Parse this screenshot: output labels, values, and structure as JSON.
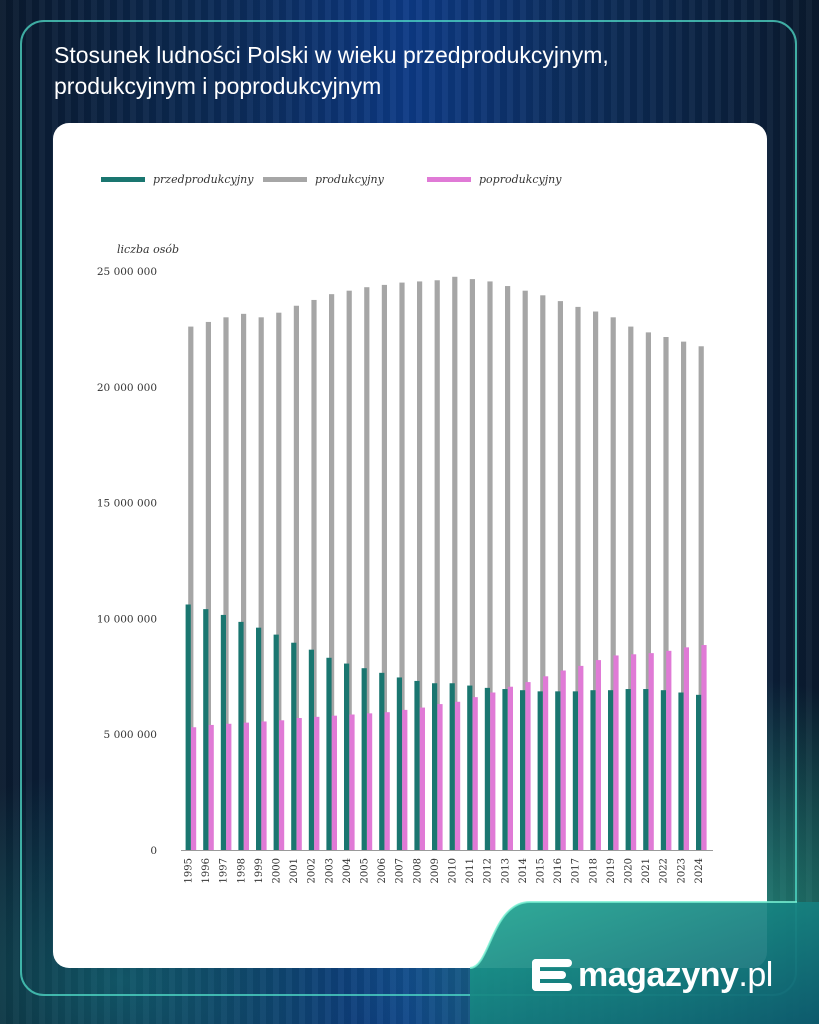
{
  "header": {
    "title": "Stosunek ludności Polski w wieku przedprodukcyjnym, produkcyjnym i poprodukcyjnym"
  },
  "brand": {
    "name": "magazyny",
    "suffix": ".pl"
  },
  "colors": {
    "przedprodukcyjny": "#1a7670",
    "produkcyjny": "#a6a6a6",
    "poprodukcyjny": "#e07ad6",
    "accent": "#3de0b8"
  },
  "chart_data": {
    "type": "bar",
    "title": "",
    "ylabel": "liczba osób",
    "xlabel": "",
    "ylim": [
      0,
      25000000
    ],
    "yticks": [
      0,
      5000000,
      10000000,
      15000000,
      20000000,
      25000000
    ],
    "ytick_labels": [
      "0",
      "5 000 000",
      "10 000 000",
      "15 000 000",
      "20 000 000",
      "25 000 000"
    ],
    "legend_position": "top-left",
    "grid": false,
    "categories": [
      "1995",
      "1996",
      "1997",
      "1998",
      "1999",
      "2000",
      "2001",
      "2002",
      "2003",
      "2004",
      "2005",
      "2006",
      "2007",
      "2008",
      "2009",
      "2010",
      "2011",
      "2012",
      "2013",
      "2014",
      "2015",
      "2016",
      "2017",
      "2018",
      "2019",
      "2020",
      "2021",
      "2022",
      "2023",
      "2024"
    ],
    "series": [
      {
        "name": "przedprodukcyjny",
        "values": [
          10600000,
          10400000,
          10150000,
          9850000,
          9600000,
          9300000,
          8950000,
          8650000,
          8300000,
          8050000,
          7850000,
          7650000,
          7450000,
          7300000,
          7200000,
          7200000,
          7100000,
          7000000,
          6950000,
          6900000,
          6850000,
          6850000,
          6850000,
          6900000,
          6900000,
          6950000,
          6950000,
          6900000,
          6800000,
          6700000
        ]
      },
      {
        "name": "produkcyjny",
        "values": [
          22600000,
          22800000,
          23000000,
          23150000,
          23000000,
          23200000,
          23500000,
          23750000,
          24000000,
          24150000,
          24300000,
          24400000,
          24500000,
          24550000,
          24600000,
          24750000,
          24650000,
          24550000,
          24350000,
          24150000,
          23950000,
          23700000,
          23450000,
          23250000,
          23000000,
          22600000,
          22350000,
          22150000,
          21950000,
          21750000
        ]
      },
      {
        "name": "poprodukcyjny",
        "values": [
          5300000,
          5400000,
          5450000,
          5500000,
          5550000,
          5600000,
          5700000,
          5750000,
          5800000,
          5850000,
          5900000,
          5950000,
          6050000,
          6150000,
          6300000,
          6400000,
          6600000,
          6800000,
          7050000,
          7250000,
          7500000,
          7750000,
          7950000,
          8200000,
          8400000,
          8450000,
          8500000,
          8600000,
          8750000,
          8850000
        ]
      }
    ]
  }
}
